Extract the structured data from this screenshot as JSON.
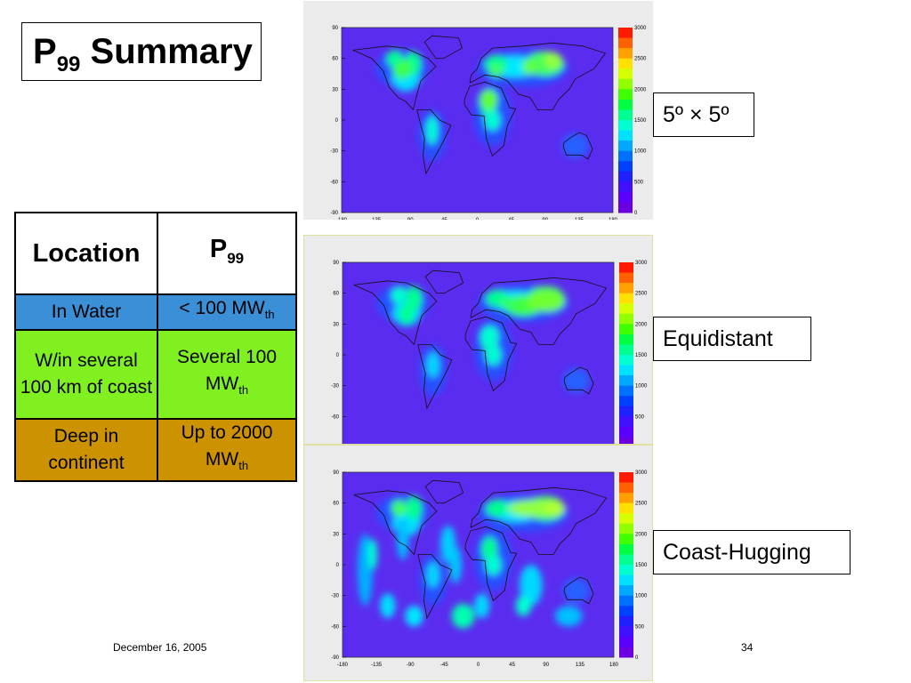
{
  "title": {
    "main": "P",
    "sub": "99",
    "rest": "Summary"
  },
  "table": {
    "header": {
      "location": "Location",
      "p_main": "P",
      "p_sub": "99"
    },
    "rows": [
      {
        "location": "In Water",
        "value_main": "< 100 MW",
        "value_sub": "th",
        "color": "#3a8fd6"
      },
      {
        "location": "W/in several 100 km of coast",
        "value_main": "Several 100 MW",
        "value_sub": "th",
        "color": "#80f020"
      },
      {
        "location": "Deep in continent",
        "value_main": "Up to 2000 MW",
        "value_sub": "th",
        "color": "#cc9200"
      }
    ]
  },
  "maps": {
    "y_ticks": [
      "90",
      "60",
      "30",
      "0",
      "-30",
      "-60",
      "-90"
    ],
    "y_ticks_partial": [
      "90",
      "60",
      "30",
      "0",
      "-30",
      "-60"
    ],
    "x_ticks": [
      "-180",
      "-135",
      "-90",
      "-45",
      "0",
      "45",
      "90",
      "135",
      "180"
    ],
    "scale_ticks": [
      "3000",
      "2500",
      "2000",
      "1500",
      "1000",
      "500",
      "0"
    ],
    "scale_ticks_partial": [
      "3000",
      "2500",
      "2000",
      "1500",
      "1000",
      "500"
    ],
    "scale_colors": [
      "#ff1a00",
      "#ff6000",
      "#ffa000",
      "#ffe000",
      "#d8ff00",
      "#90ff00",
      "#40ff00",
      "#00ff40",
      "#00ff90",
      "#00ffd0",
      "#00e0ff",
      "#00a8ff",
      "#0070ff",
      "#0040ff",
      "#2020ff",
      "#4010ff",
      "#5a00ff",
      "#6a00e0"
    ]
  },
  "labels": {
    "map1": "5º × 5º",
    "map2": "Equidistant",
    "map3": "Coast-Hugging"
  },
  "footer": {
    "date": "December 16, 2005",
    "page": "34"
  },
  "colors": {
    "ocean": "#5a2cf0",
    "coast_border": "#e8e8c0"
  }
}
